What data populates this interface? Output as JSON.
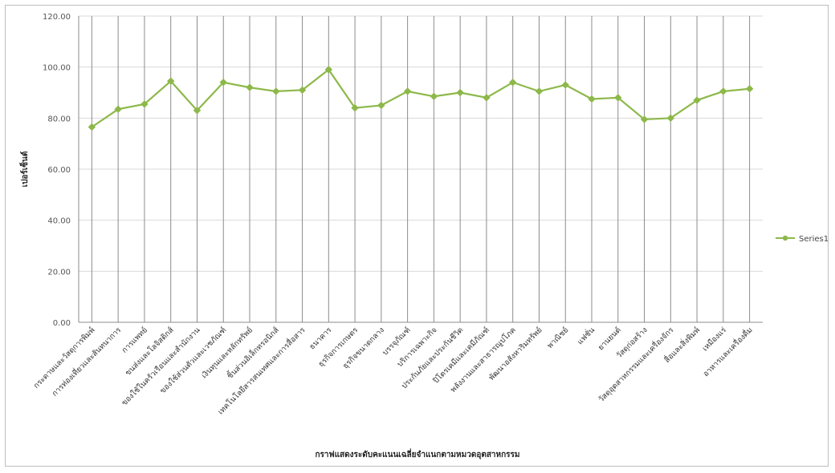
{
  "chart_data": {
    "type": "line",
    "title": "",
    "xlabel": "กราฟแสดงระดับคะแนนเฉลี่ยจำแนกตามหมวดอุตสาหกรรม",
    "ylabel": "เปอร์เซ็นต์",
    "ylim": [
      0,
      120
    ],
    "yticks": [
      "0.00",
      "20.00",
      "40.00",
      "60.00",
      "80.00",
      "100.00",
      "120.00"
    ],
    "grid": "vertical-at-categories",
    "legend_position": "right",
    "line_color": "#8db84a",
    "categories": [
      "กระดาษและวัสดุการพิมพ์",
      "การท่องเที่ยวและสันทนาการ",
      "การแพทย์",
      "ขนส่งและโลจิสติกส์",
      "ของใช้ในครัวเรือนและสำนักงาน",
      "ของใช้ส่วนตัวและเวชภัณฑ์",
      "เงินทุนและหลักทรัพย์",
      "ชิ้นส่วนอิเล็กทรอนิกส์",
      "เทคโนโลยีสารสนเทศและการสื่อสาร",
      "ธนาคาร",
      "ธุรกิจการเกษตร",
      "ธุรกิจขนาดกลาง",
      "บรรจุภัณฑ์",
      "บริการเฉพาะกิจ",
      "ประกันภัยและประกันชีวิต",
      "ปิโตรเคมีและเคมีภัณฑ์",
      "พลังงานและสาธารณูปโภค",
      "พัฒนาอสังหาริมทรัพย์",
      "พาณิชย์",
      "แฟชั่น",
      "ยานยนต์",
      "วัสดุก่อสร้าง",
      "วัสดุอุตสาหกรรมและเครื่องจักร",
      "สื่อและสิ่งพิมพ์",
      "เหมืองแร่",
      "อาหารและเครื่องดื่ม"
    ],
    "series": [
      {
        "name": "Series1",
        "values": [
          76.5,
          83.5,
          85.5,
          94.5,
          83,
          94,
          92,
          90.5,
          91,
          99,
          84,
          85,
          90.5,
          88.5,
          90,
          88,
          94,
          90.5,
          93,
          87.5,
          88,
          79.5,
          80,
          87,
          90.5,
          91.5
        ]
      }
    ]
  }
}
